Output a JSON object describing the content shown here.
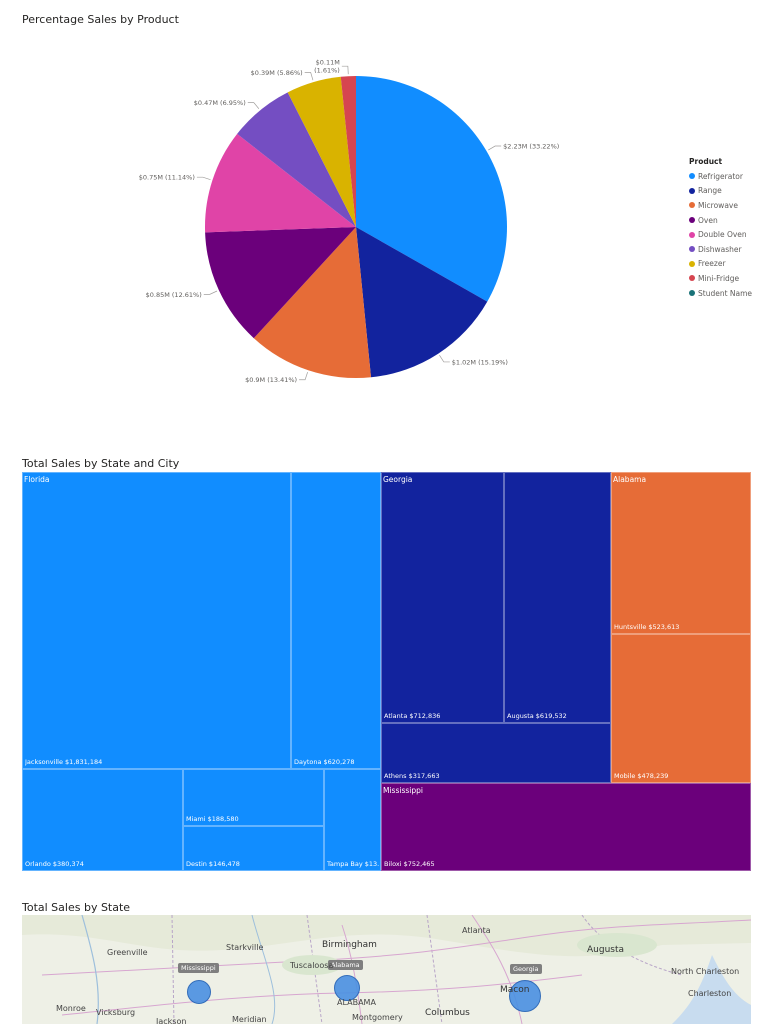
{
  "pie_title": "Percentage Sales by Product",
  "treemap_title": "Total Sales by State and City",
  "map_title": "Total Sales by State",
  "legend": {
    "title": "Product",
    "items": [
      {
        "name": "Refrigerator",
        "color": "#118dff"
      },
      {
        "name": "Range",
        "color": "#12239e"
      },
      {
        "name": "Microwave",
        "color": "#e66c37"
      },
      {
        "name": "Oven",
        "color": "#6b007b"
      },
      {
        "name": "Double Oven",
        "color": "#e044a7"
      },
      {
        "name": "Dishwasher",
        "color": "#744ec2"
      },
      {
        "name": "Freezer",
        "color": "#d9b300"
      },
      {
        "name": "Mini-Fridge",
        "color": "#d64550"
      },
      {
        "name": "Student Name",
        "color": "#197278"
      }
    ]
  },
  "chart_data": [
    {
      "type": "pie",
      "title": "Percentage Sales by Product",
      "slices": [
        {
          "name": "Refrigerator",
          "value": 2.23,
          "percent": 33.22,
          "label": "$2.23M (33.22%)",
          "color": "#118dff"
        },
        {
          "name": "Range",
          "value": 1.02,
          "percent": 15.19,
          "label": "$1.02M (15.19%)",
          "color": "#12239e"
        },
        {
          "name": "Microwave",
          "value": 0.9,
          "percent": 13.41,
          "label": "$0.9M (13.41%)",
          "color": "#e66c37"
        },
        {
          "name": "Oven",
          "value": 0.85,
          "percent": 12.61,
          "label": "$0.85M (12.61%)",
          "color": "#6b007b"
        },
        {
          "name": "Double Oven",
          "value": 0.75,
          "percent": 11.14,
          "label": "$0.75M (11.14%)",
          "color": "#e044a7"
        },
        {
          "name": "Dishwasher",
          "value": 0.47,
          "percent": 6.95,
          "label": "$0.47M (6.95%)",
          "color": "#744ec2"
        },
        {
          "name": "Freezer",
          "value": 0.39,
          "percent": 5.86,
          "label": "$0.39M (5.86%)",
          "color": "#d9b300"
        },
        {
          "name": "Mini-Fridge",
          "value": 0.11,
          "percent": 1.61,
          "label": [
            "$0.11M",
            "(1.61%)"
          ],
          "color": "#d64550"
        }
      ]
    },
    {
      "type": "treemap",
      "title": "Total Sales by State and City",
      "groups": [
        {
          "state": "Florida",
          "color": "#118dff",
          "cities": [
            {
              "city": "Jacksonville",
              "value": 1831184,
              "label": "Jacksonville $1,831,184"
            },
            {
              "city": "Daytona",
              "value": 620278,
              "label": "Daytona $620,278"
            },
            {
              "city": "Orlando",
              "value": 380374,
              "label": "Orlando $380,374"
            },
            {
              "city": "Miami",
              "value": 188580,
              "label": "Miami $188,580"
            },
            {
              "city": "Destin",
              "value": 146478,
              "label": "Destin $146,478"
            },
            {
              "city": "Tampa Bay",
              "label": "Tampa Bay $13..."
            }
          ]
        },
        {
          "state": "Georgia",
          "color": "#12239e",
          "cities": [
            {
              "city": "Atlanta",
              "value": 712836,
              "label": "Atlanta $712,836"
            },
            {
              "city": "Augusta",
              "value": 619532,
              "label": "Augusta $619,532"
            },
            {
              "city": "Athens",
              "value": 317663,
              "label": "Athens $317,663"
            }
          ]
        },
        {
          "state": "Alabama",
          "color": "#e66c37",
          "cities": [
            {
              "city": "Huntsville",
              "value": 523613,
              "label": "Huntsville $523,613"
            },
            {
              "city": "Mobile",
              "value": 478239,
              "label": "Mobile $478,239"
            }
          ]
        },
        {
          "state": "Mississippi",
          "color": "#6b007b",
          "cities": [
            {
              "city": "Biloxi",
              "value": 752465,
              "label": "Biloxi $752,465"
            }
          ]
        }
      ]
    },
    {
      "type": "map",
      "title": "Total Sales by State",
      "bubbles": [
        {
          "state": "Mississippi",
          "label": "Mississippi"
        },
        {
          "state": "Alabama",
          "label": "Alabama"
        },
        {
          "state": "Georgia",
          "label": "Georgia"
        }
      ]
    }
  ],
  "map_places": [
    "Greenville",
    "Starkville",
    "Birmingham",
    "Atlanta",
    "Augusta",
    "Tuscaloosa",
    "North Charleston",
    "Charleston",
    "Monroe",
    "Vicksburg",
    "Jackson",
    "Meridian",
    "ALABAMA",
    "Montgomery",
    "Columbus",
    "Macon"
  ]
}
